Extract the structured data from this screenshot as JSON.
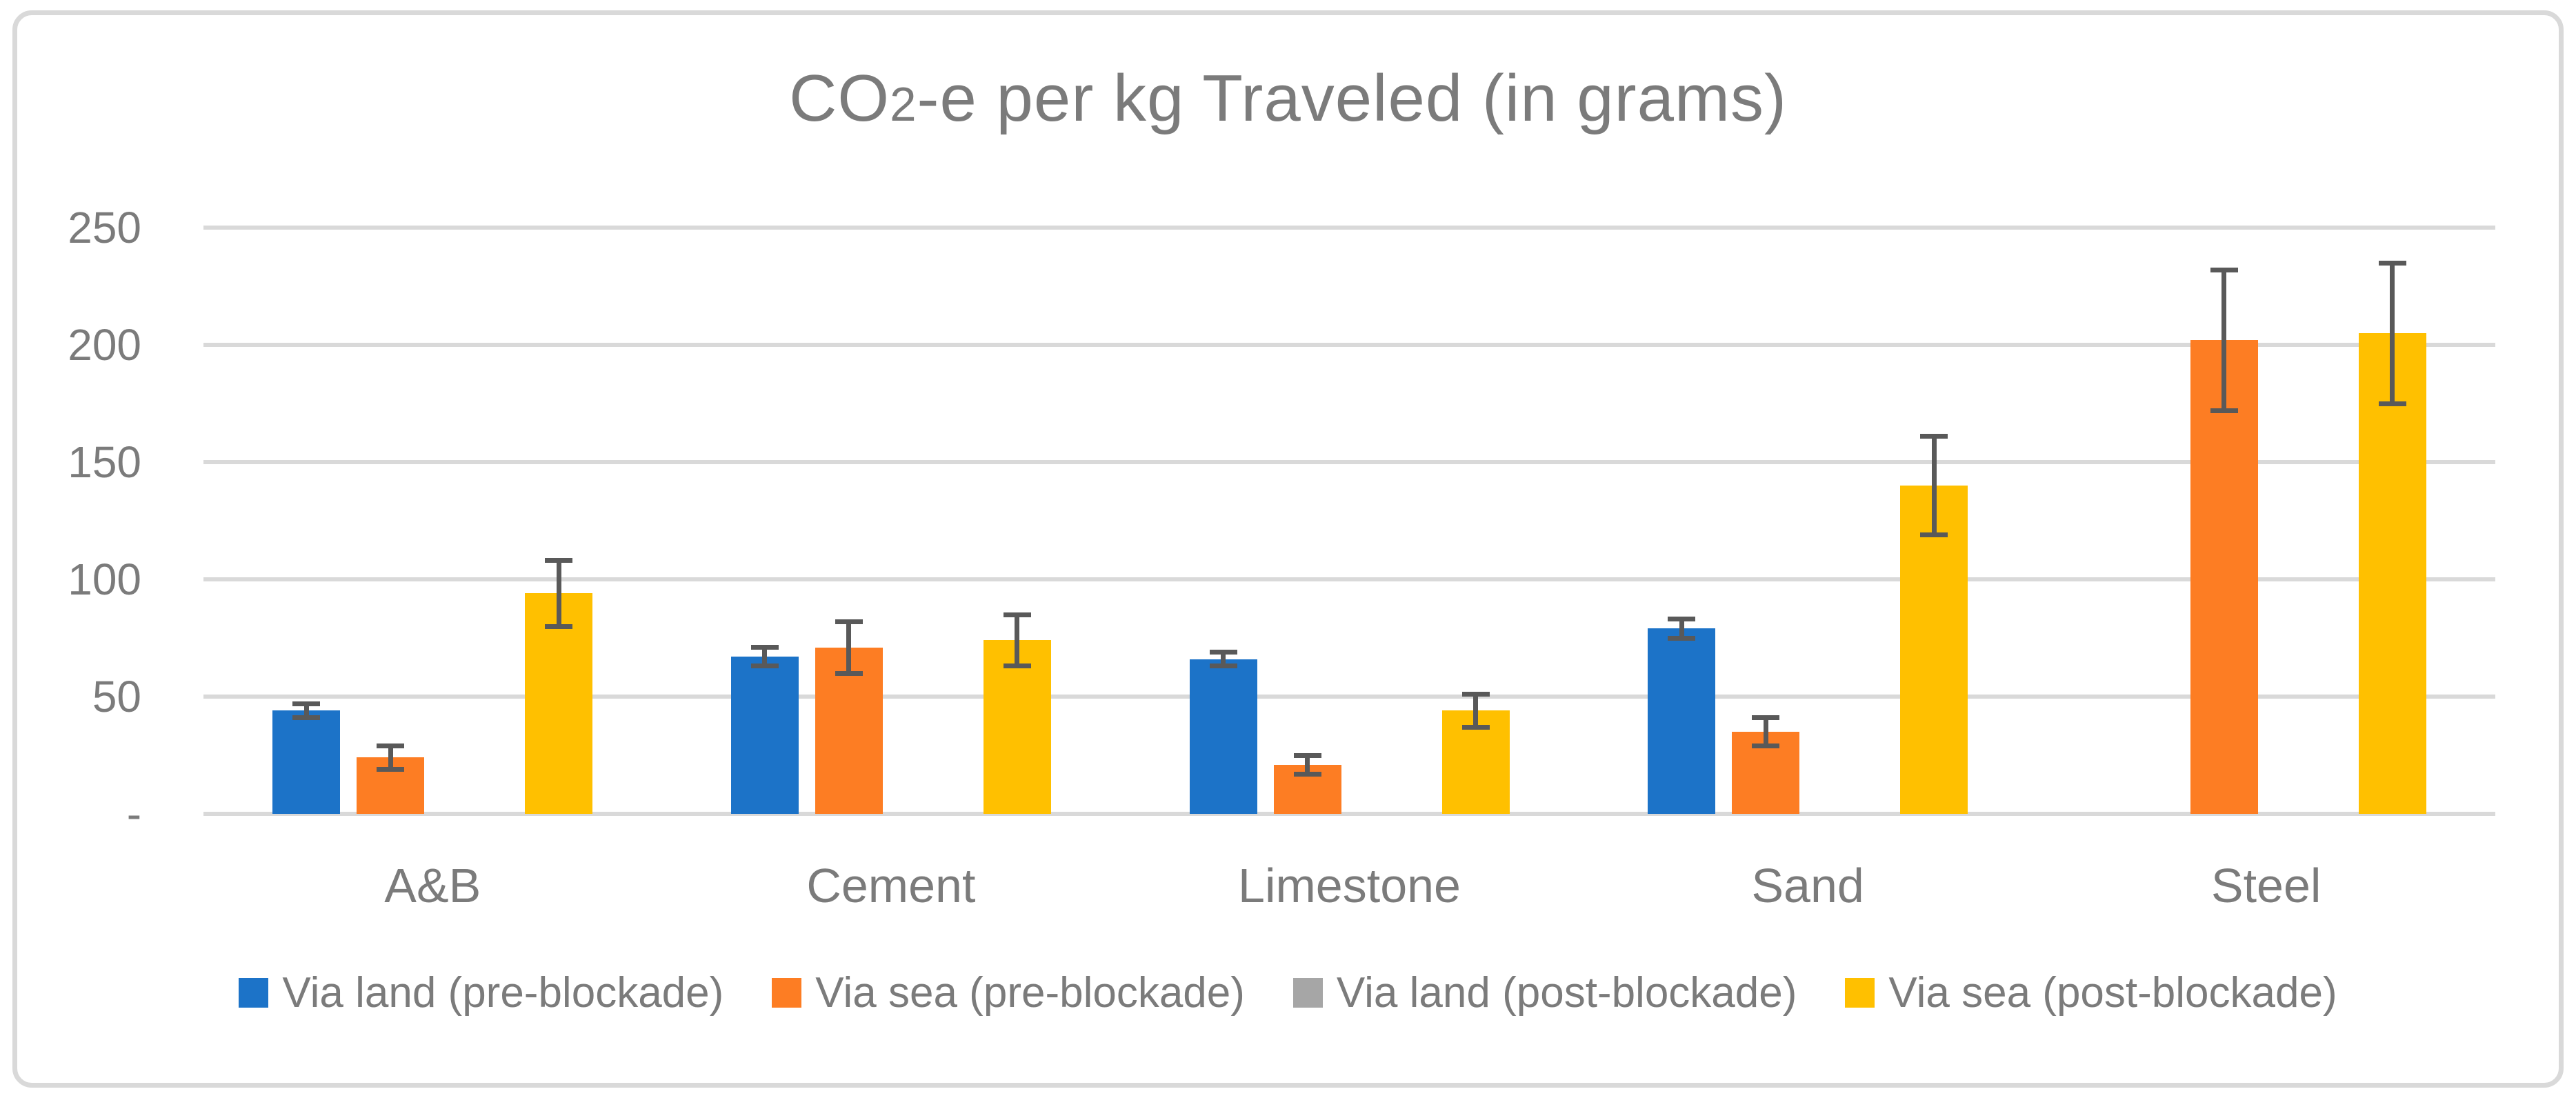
{
  "chart": {
    "title_prefix": "CO",
    "title_sub": "2",
    "title_suffix": "-e per kg Traveled (in grams)"
  },
  "chart_data": {
    "type": "bar",
    "title": "CO2-e per kg Traveled (in grams)",
    "categories": [
      "A&B",
      "Cement",
      "Limestone",
      "Sand",
      "Steel"
    ],
    "series": [
      {
        "name": "Via land (pre-blockade)",
        "color": "#1C73C8",
        "values": [
          44,
          67,
          66,
          79,
          0
        ],
        "errors": [
          3,
          4,
          3,
          4,
          0
        ]
      },
      {
        "name": "Via sea (pre-blockade)",
        "color": "#FD7D23",
        "values": [
          24,
          71,
          21,
          35,
          202
        ],
        "errors": [
          5,
          11,
          4,
          6,
          30
        ]
      },
      {
        "name": "Via land (post-blockade)",
        "color": "#A6A6A6",
        "values": [
          0,
          0,
          0,
          0,
          0
        ],
        "errors": [
          0,
          0,
          0,
          0,
          0
        ]
      },
      {
        "name": "Via sea (post-blockade)",
        "color": "#FFC000",
        "values": [
          94,
          74,
          44,
          140,
          205
        ],
        "errors": [
          14,
          11,
          7,
          21,
          30
        ]
      }
    ],
    "ylabel": "",
    "xlabel": "",
    "ylim": [
      0,
      250
    ],
    "ytick_step": 50,
    "ytick_labels": [
      "-",
      "50",
      "100",
      "150",
      "200",
      "250"
    ],
    "grid": true,
    "legend_position": "bottom",
    "has_error_bars": true,
    "colors": {
      "error_bar": "#595959",
      "gridline": "#D9D9D9",
      "text": "#7B7B7B",
      "background": "#FFFFFF",
      "border": "#D9D9D9"
    }
  }
}
